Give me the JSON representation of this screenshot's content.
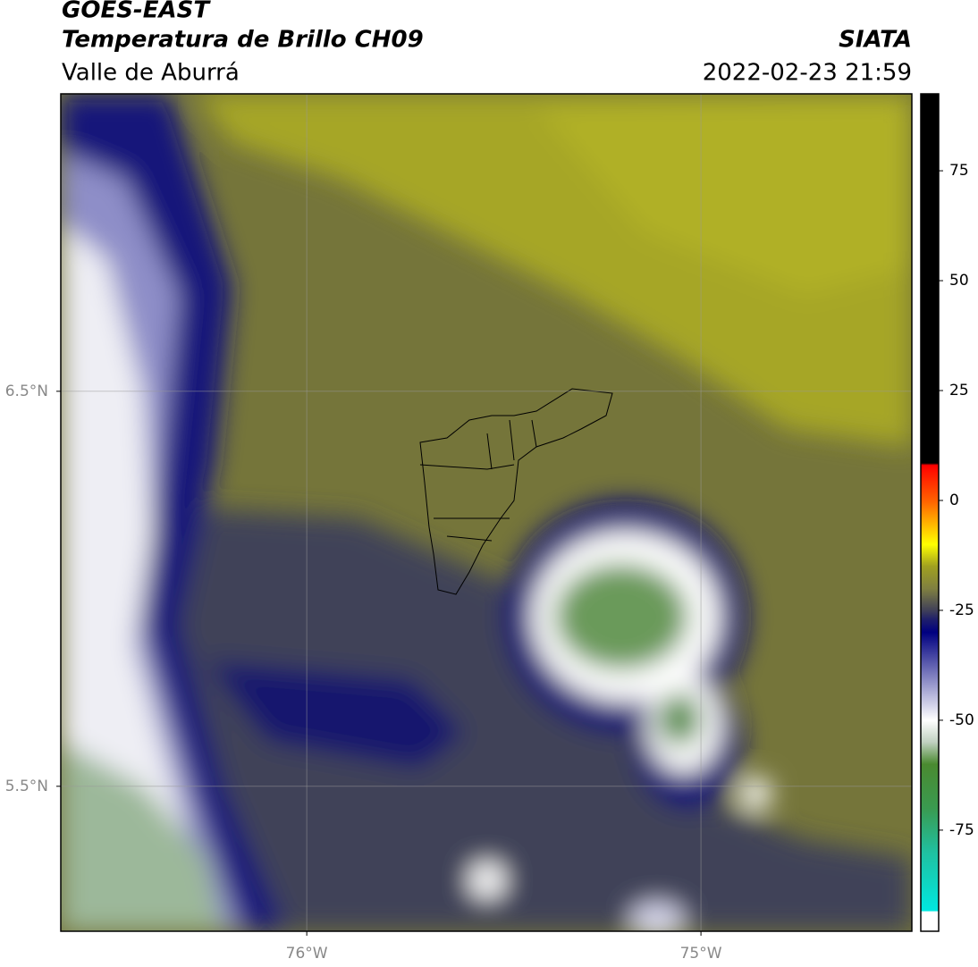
{
  "header": {
    "title": "GOES-EAST",
    "subtitle": "Temperatura de Brillo CH09",
    "region": "Valle de Aburrá",
    "source": "SIATA",
    "datetime": "2022-02-23 21:59"
  },
  "map": {
    "xlim": [
      -76.624,
      -74.465
    ],
    "ylim": [
      5.133,
      7.253
    ],
    "xticks": [
      {
        "value": -76,
        "label": "76°W"
      },
      {
        "value": -75,
        "label": "75°W"
      }
    ],
    "yticks": [
      {
        "value": 6.5,
        "label": "6.5°N"
      },
      {
        "value": 5.5,
        "label": "5.5°N"
      }
    ],
    "grid": true
  },
  "colorbar": {
    "range": [
      -98,
      92.5
    ],
    "ticks": [
      75,
      50,
      25,
      0,
      -25,
      -50,
      -75
    ],
    "stops": [
      {
        "value": 92.5,
        "color": "#000000"
      },
      {
        "value": 8.5,
        "color": "#000000"
      },
      {
        "value": 8,
        "color": "#ff0000"
      },
      {
        "value": 0,
        "color": "#ff6000"
      },
      {
        "value": -5,
        "color": "#ffb000"
      },
      {
        "value": -10,
        "color": "#ffff00"
      },
      {
        "value": -15,
        "color": "#a0a020"
      },
      {
        "value": -20,
        "color": "#808040"
      },
      {
        "value": -25,
        "color": "#404058"
      },
      {
        "value": -27,
        "color": "#20206a"
      },
      {
        "value": -30,
        "color": "#000080"
      },
      {
        "value": -40,
        "color": "#8080c0"
      },
      {
        "value": -50,
        "color": "#ffffff"
      },
      {
        "value": -55,
        "color": "#c0d0c0"
      },
      {
        "value": -60,
        "color": "#4a8a30"
      },
      {
        "value": -70,
        "color": "#3a9a50"
      },
      {
        "value": -80,
        "color": "#20c0a0"
      },
      {
        "value": -93.4,
        "color": "#00e8e0"
      },
      {
        "value": -93.5,
        "color": "#ffffff"
      },
      {
        "value": -98,
        "color": "#ffffff"
      }
    ]
  }
}
